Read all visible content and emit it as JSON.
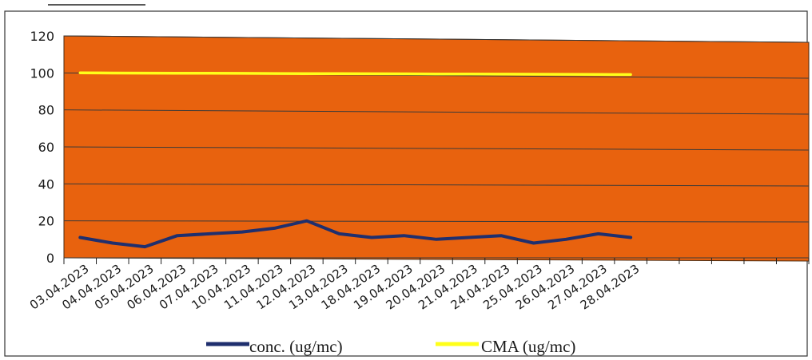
{
  "chart_data": {
    "type": "line",
    "title": "",
    "xlabel": "",
    "ylabel": "",
    "categories": [
      "03.04.2023",
      "04.04.2023",
      "05.04.2023",
      "06.04.2023",
      "07.04.2023",
      "10.04.2023",
      "11.04.2023",
      "12.04.2023",
      "13.04.2023",
      "18.04.2023",
      "19.04.2023",
      "20.04.2023",
      "21.04.2023",
      "24.04.2023",
      "25.04.2023",
      "26.04.2023",
      "27.04.2023",
      "28.04.2023"
    ],
    "extra_empty_slots": 5,
    "ylim": [
      0,
      120
    ],
    "yticks": [
      "0",
      "20",
      "40",
      "60",
      "80",
      "100",
      "120"
    ],
    "grid": true,
    "legend_position": "bottom",
    "plot_background": "#e8620e",
    "series": [
      {
        "name": "conc. (ug/mc)",
        "color": "#1f2f6e",
        "values": [
          11,
          8,
          6,
          12,
          13,
          14,
          16,
          20,
          13,
          11,
          12,
          10,
          11,
          12,
          8,
          10,
          13,
          11
        ]
      },
      {
        "name": "CMA (ug/mc)",
        "color": "#ffff1a",
        "values": [
          100,
          100,
          100,
          100,
          100,
          100,
          100,
          100,
          100,
          100,
          100,
          100,
          100,
          100,
          100,
          100,
          100,
          100
        ]
      }
    ]
  }
}
